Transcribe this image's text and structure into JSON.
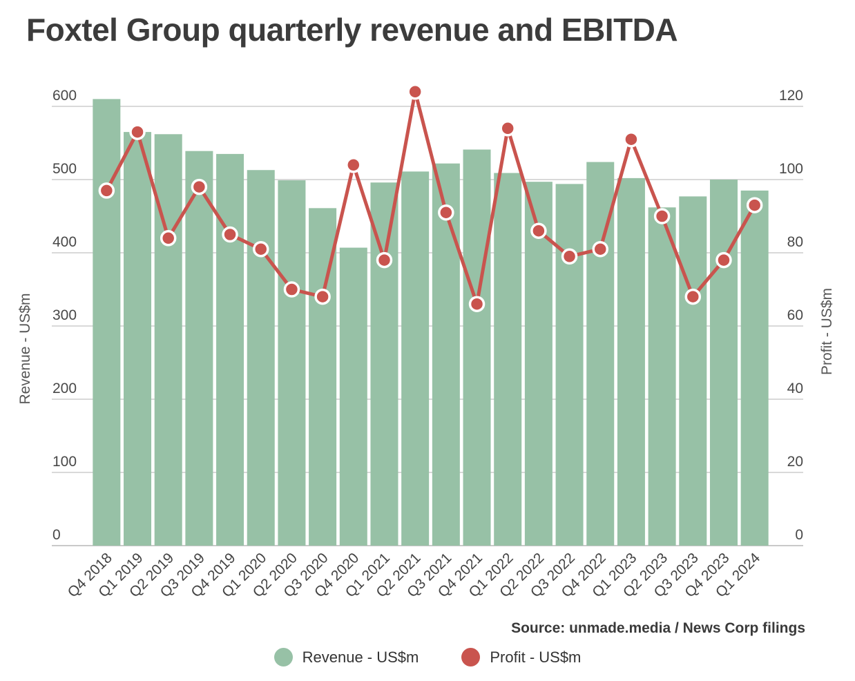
{
  "title": "Foxtel Group quarterly revenue and EBITDA",
  "source": "Source: unmade.media / News Corp filings",
  "colors": {
    "revenue_green": "#97c1a6",
    "profit_red": "#c9544e",
    "gridline": "#d9d9d9",
    "baseline": "#c9c9c9",
    "tick_label": "#484848",
    "title_text": "#3c3c3c",
    "dot_ring": "#ffffff"
  },
  "chart_data": {
    "type": "bar",
    "subtype": "combo-bar-line-dual-axis",
    "title": "Foxtel Group quarterly revenue and EBITDA",
    "categories": [
      "Q4 2018",
      "Q1 2019",
      "Q2 2019",
      "Q3 2019",
      "Q4 2019",
      "Q1 2020",
      "Q2 2020",
      "Q3 2020",
      "Q4 2020",
      "Q1 2021",
      "Q2 2021",
      "Q3 2021",
      "Q4 2021",
      "Q1 2022",
      "Q2 2022",
      "Q3 2022",
      "Q4 2022",
      "Q1 2023",
      "Q2 2023",
      "Q3 2023",
      "Q4 2023",
      "Q1 2024"
    ],
    "series": [
      {
        "name": "Revenue - US$m",
        "type": "bar",
        "axis": "left",
        "color": "#97c1a6",
        "values": [
          610,
          565,
          562,
          539,
          535,
          513,
          499,
          461,
          407,
          496,
          511,
          522,
          541,
          509,
          497,
          494,
          524,
          502,
          462,
          477,
          500,
          485
        ]
      },
      {
        "name": "Profit - US$m",
        "type": "line",
        "axis": "right",
        "color": "#c9544e",
        "values": [
          97,
          113,
          84,
          98,
          85,
          81,
          70,
          68,
          104,
          78,
          124,
          91,
          66,
          114,
          86,
          79,
          81,
          111,
          90,
          68,
          78,
          93
        ]
      }
    ],
    "left_axis": {
      "title": "Revenue - US$m",
      "min": 0,
      "max": 600,
      "ticks": [
        0,
        100,
        200,
        300,
        400,
        500,
        600
      ]
    },
    "right_axis": {
      "title": "Profit - US$m",
      "min": 0,
      "max": 120,
      "ticks": [
        0,
        20,
        40,
        60,
        80,
        100,
        120
      ]
    },
    "grid": true,
    "legend_position": "bottom"
  }
}
